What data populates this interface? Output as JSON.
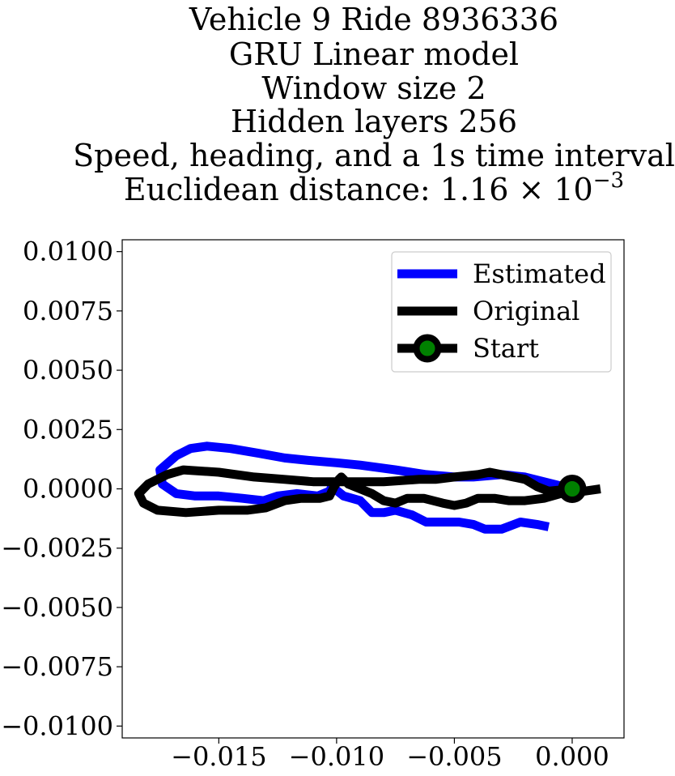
{
  "chart_data": {
    "type": "line",
    "title_lines": [
      "Vehicle 9 Ride 8936336",
      "GRU Linear model",
      "Window size 2",
      "Hidden layers 256",
      "Speed, heading, and a 1s time interval",
      "Euclidean distance: 1.16 × 10",
      "−3"
    ],
    "xlim": [
      -0.0191,
      0.0022
    ],
    "ylim": [
      -0.0105,
      0.0105
    ],
    "x_ticks": [
      -0.015,
      -0.01,
      -0.005,
      0.0
    ],
    "x_tick_labels": [
      "−0.015",
      "−0.010",
      "−0.005",
      "0.000"
    ],
    "y_ticks": [
      0.01,
      0.0075,
      0.005,
      0.0025,
      0.0,
      -0.0025,
      -0.005,
      -0.0075,
      -0.01
    ],
    "y_tick_labels": [
      "0.0100",
      "0.0075",
      "0.0050",
      "0.0025",
      "0.0000",
      "−0.0025",
      "−0.0050",
      "−0.0075",
      "−0.0100"
    ],
    "grid": false,
    "legend_position": "top-right",
    "series": [
      {
        "name": "Estimated",
        "color": "#0000ff",
        "points": [
          [
            0.0,
            0.0
          ],
          [
            -0.002,
            0.0005
          ],
          [
            -0.003,
            0.0006
          ],
          [
            -0.0042,
            0.0005
          ],
          [
            -0.005,
            0.0005
          ],
          [
            -0.0062,
            0.0006
          ],
          [
            -0.0075,
            0.0008
          ],
          [
            -0.009,
            0.001
          ],
          [
            -0.01,
            0.0011
          ],
          [
            -0.0112,
            0.0012
          ],
          [
            -0.0122,
            0.0013
          ],
          [
            -0.0133,
            0.0015
          ],
          [
            -0.0145,
            0.0017
          ],
          [
            -0.0155,
            0.0018
          ],
          [
            -0.0162,
            0.0017
          ],
          [
            -0.0168,
            0.0014
          ],
          [
            -0.0175,
            0.0008
          ],
          [
            -0.0174,
            0.0002
          ],
          [
            -0.0168,
            -0.0002
          ],
          [
            -0.016,
            -0.0003
          ],
          [
            -0.015,
            -0.0003
          ],
          [
            -0.014,
            -0.0004
          ],
          [
            -0.0131,
            -0.0005
          ],
          [
            -0.0125,
            -0.0003
          ],
          [
            -0.0117,
            -0.0002
          ],
          [
            -0.0108,
            -0.0003
          ],
          [
            -0.0103,
            -0.0001
          ],
          [
            -0.0102,
            0.0001
          ],
          [
            -0.0097,
            -0.0003
          ],
          [
            -0.009,
            -0.0005
          ],
          [
            -0.0085,
            -0.001
          ],
          [
            -0.008,
            -0.001
          ],
          [
            -0.0075,
            -0.0009
          ],
          [
            -0.0068,
            -0.0011
          ],
          [
            -0.0062,
            -0.0014
          ],
          [
            -0.0055,
            -0.0014
          ],
          [
            -0.0048,
            -0.0014
          ],
          [
            -0.0042,
            -0.0015
          ],
          [
            -0.0037,
            -0.0017
          ],
          [
            -0.003,
            -0.0017
          ],
          [
            -0.0022,
            -0.0014
          ],
          [
            -0.0015,
            -0.0015
          ],
          [
            -0.001,
            -0.0016
          ]
        ]
      },
      {
        "name": "Original",
        "color": "#000000",
        "points": [
          [
            0.0012,
            0.0
          ],
          [
            0.0005,
            -0.0001
          ],
          [
            0.0,
            0.0
          ],
          [
            -0.001,
            -0.0001
          ],
          [
            -0.0015,
            0.0001
          ],
          [
            -0.002,
            0.0004
          ],
          [
            -0.003,
            0.0006
          ],
          [
            -0.0035,
            0.0007
          ],
          [
            -0.004,
            0.0006
          ],
          [
            -0.005,
            0.0005
          ],
          [
            -0.0058,
            0.0004
          ],
          [
            -0.0065,
            0.0004
          ],
          [
            -0.008,
            0.0003
          ],
          [
            -0.0095,
            0.0003
          ],
          [
            -0.011,
            0.0003
          ],
          [
            -0.0122,
            0.0004
          ],
          [
            -0.0135,
            0.0005
          ],
          [
            -0.015,
            0.0007
          ],
          [
            -0.0165,
            0.0008
          ],
          [
            -0.0172,
            0.0006
          ],
          [
            -0.018,
            0.0002
          ],
          [
            -0.0184,
            -0.0002
          ],
          [
            -0.0182,
            -0.0006
          ],
          [
            -0.0176,
            -0.0009
          ],
          [
            -0.0164,
            -0.001
          ],
          [
            -0.015,
            -0.0009
          ],
          [
            -0.0138,
            -0.0009
          ],
          [
            -0.013,
            -0.0008
          ],
          [
            -0.0122,
            -0.0005
          ],
          [
            -0.0115,
            -0.0004
          ],
          [
            -0.0107,
            -0.0004
          ],
          [
            -0.0103,
            -0.0003
          ],
          [
            -0.0101,
            0.0001
          ],
          [
            -0.0099,
            0.0004
          ],
          [
            -0.0098,
            0.0005
          ],
          [
            -0.0095,
            0.0002
          ],
          [
            -0.009,
            0.0
          ],
          [
            -0.0085,
            -0.0002
          ],
          [
            -0.008,
            -0.0005
          ],
          [
            -0.0075,
            -0.0006
          ],
          [
            -0.007,
            -0.0004
          ],
          [
            -0.0063,
            -0.0004
          ],
          [
            -0.0055,
            -0.0006
          ],
          [
            -0.005,
            -0.0007
          ],
          [
            -0.0045,
            -0.0006
          ],
          [
            -0.004,
            -0.0004
          ],
          [
            -0.0033,
            -0.0004
          ],
          [
            -0.0027,
            -0.0005
          ],
          [
            -0.002,
            -0.0005
          ],
          [
            -0.0012,
            -0.0004
          ],
          [
            -0.0005,
            -0.0002
          ],
          [
            0.0,
            0.0
          ]
        ]
      }
    ],
    "start_marker": {
      "name": "Start",
      "x": 0.0,
      "y": 0.0,
      "fill": "#008000",
      "edge": "#000000"
    }
  }
}
